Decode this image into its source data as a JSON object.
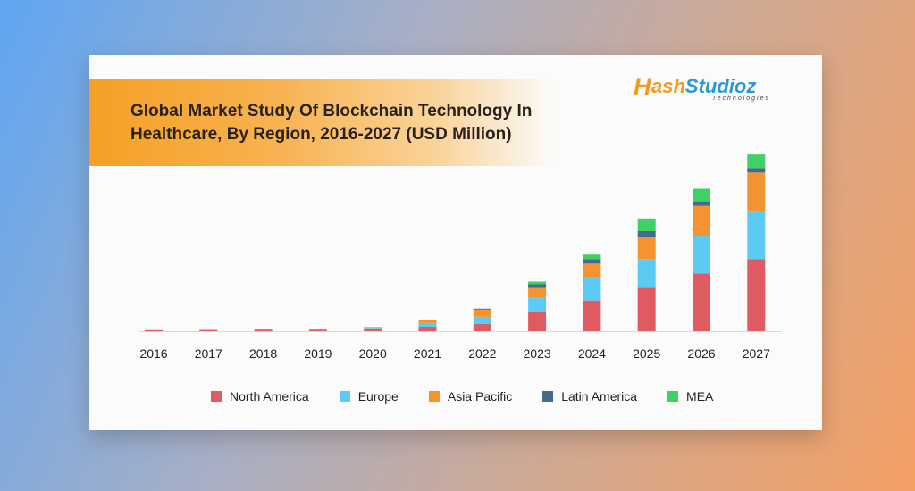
{
  "brand": {
    "logo_mark": "H",
    "name_part1": "ash",
    "name_part2": "Studioz",
    "tagline": "Technologies"
  },
  "colors": {
    "North America": "#e05a61",
    "Europe": "#5ccbf3",
    "Asia Pacific": "#f4932f",
    "Latin America": "#46698c",
    "MEA": "#3fd166"
  },
  "chart_data": {
    "type": "bar",
    "stacked": true,
    "title": "Global Market Study Of Blockchain Technology In Healthcare, By Region, 2016-2027 (USD Million)",
    "xlabel": "",
    "ylabel": "",
    "grid": false,
    "legend_position": "bottom",
    "ylim": [
      0,
      2100
    ],
    "categories": [
      "2016",
      "2017",
      "2018",
      "2019",
      "2020",
      "2021",
      "2022",
      "2023",
      "2024",
      "2025",
      "2026",
      "2027"
    ],
    "series": [
      {
        "name": "North America",
        "values": [
          12,
          14,
          15,
          17,
          25,
          50,
          80,
          210,
          340,
          480,
          640,
          800
        ]
      },
      {
        "name": "Europe",
        "values": [
          0,
          0,
          8,
          10,
          12,
          40,
          80,
          160,
          260,
          320,
          420,
          530
        ]
      },
      {
        "name": "Asia Pacific",
        "values": [
          0,
          0,
          0,
          0,
          10,
          30,
          80,
          110,
          150,
          250,
          330,
          430
        ]
      },
      {
        "name": "Latin America",
        "values": [
          0,
          0,
          0,
          0,
          0,
          8,
          10,
          40,
          50,
          60,
          50,
          50
        ]
      },
      {
        "name": "MEA",
        "values": [
          0,
          0,
          0,
          0,
          0,
          0,
          0,
          30,
          50,
          140,
          140,
          150
        ]
      }
    ]
  }
}
